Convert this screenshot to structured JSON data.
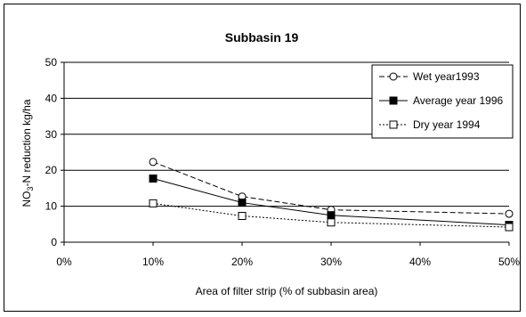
{
  "chart_data": {
    "type": "line",
    "title": "Subbasin 19",
    "xlabel": "Area of filter strip (% of subbasin area)",
    "ylabel": {
      "prefix": "NO",
      "sub": "3",
      "suffix": "-N reduction kg/ha"
    },
    "x_categories": [
      "0%",
      "10%",
      "20%",
      "30%",
      "40%",
      "50%"
    ],
    "x": [
      10,
      20,
      30,
      50
    ],
    "xlim": [
      0,
      50
    ],
    "ylim": [
      0,
      50
    ],
    "y_ticks": [
      0,
      10,
      20,
      30,
      40,
      50
    ],
    "grid": "horizontal",
    "legend": "top-right",
    "series": [
      {
        "name": "Wet year1993",
        "values": [
          22.3,
          12.7,
          9.0,
          7.9
        ],
        "line": "dashed",
        "marker": "open-circle",
        "color": "#000000"
      },
      {
        "name": "Average year 1996",
        "values": [
          17.7,
          11.0,
          7.5,
          4.8
        ],
        "line": "solid",
        "marker": "filled-square",
        "color": "#000000"
      },
      {
        "name": "Dry year 1994",
        "values": [
          10.8,
          7.3,
          5.5,
          4.2
        ],
        "line": "dotted",
        "marker": "open-square",
        "color": "#000000"
      }
    ]
  }
}
